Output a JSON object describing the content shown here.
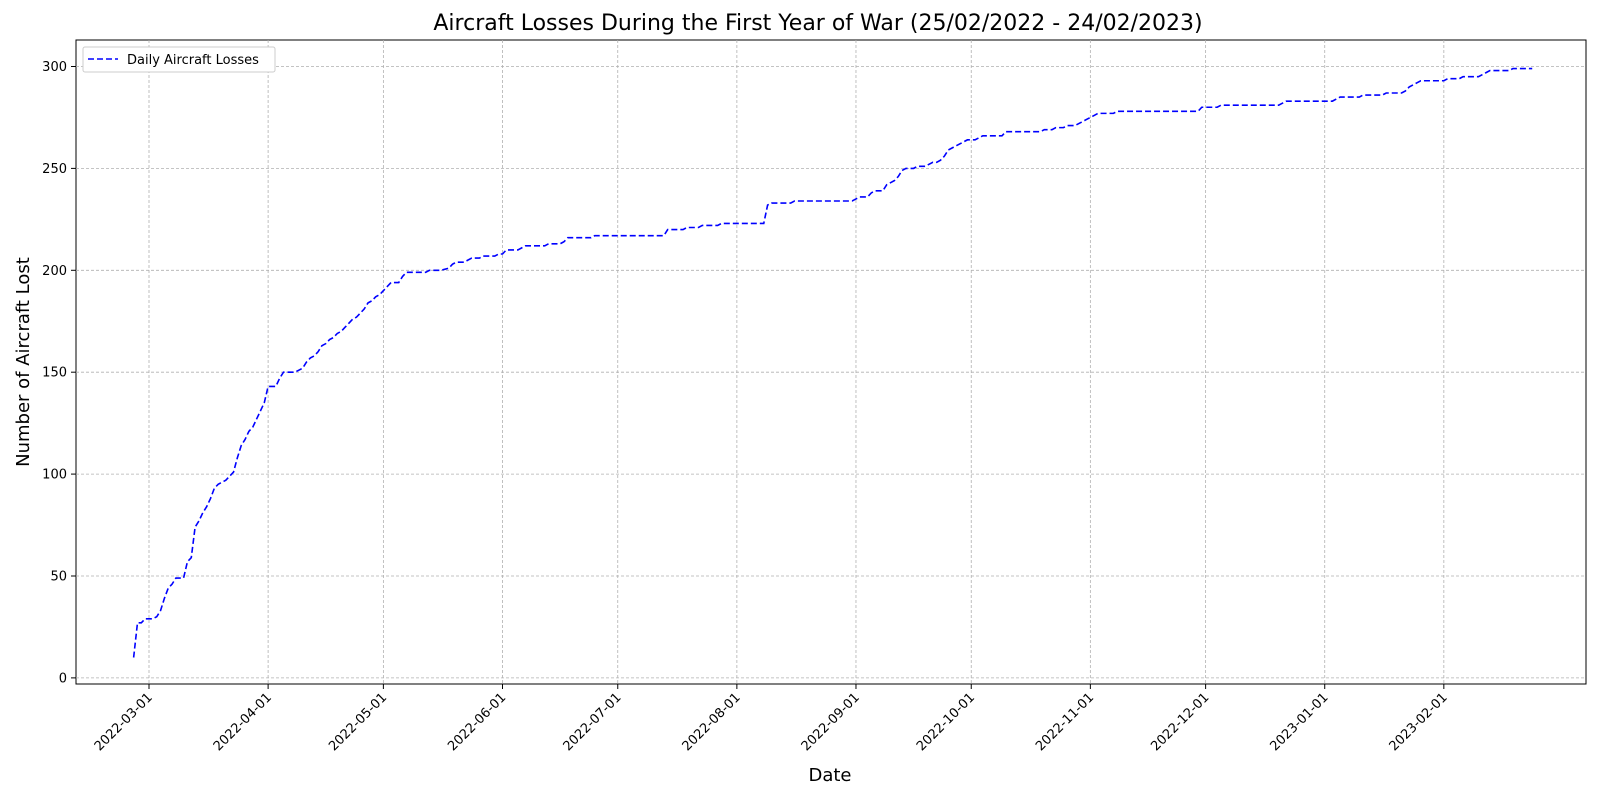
{
  "chart_data": {
    "type": "line",
    "title": "Aircraft Losses During the First Year of War (25/02/2022 - 24/02/2023)",
    "xlabel": "Date",
    "ylabel": "Number of Aircraft Lost",
    "grid": true,
    "legend_position": "top-left",
    "x_ticks": [
      "2022-03-01",
      "2022-04-01",
      "2022-05-01",
      "2022-06-01",
      "2022-07-01",
      "2022-08-01",
      "2022-09-01",
      "2022-10-01",
      "2022-11-01",
      "2022-12-01",
      "2023-01-01",
      "2023-02-01"
    ],
    "y_ticks": [
      0,
      50,
      100,
      150,
      200,
      250,
      300
    ],
    "ylim": [
      -3,
      313
    ],
    "xlim": [
      "2022-02-10",
      "2023-03-10"
    ],
    "series": [
      {
        "name": "Daily Aircraft Losses",
        "color": "#0000ff",
        "line_style": "dashed",
        "points": [
          [
            "2022-02-25",
            10
          ],
          [
            "2022-02-26",
            27
          ],
          [
            "2022-02-27",
            27
          ],
          [
            "2022-02-28",
            29
          ],
          [
            "2022-03-02",
            29
          ],
          [
            "2022-03-03",
            30
          ],
          [
            "2022-03-04",
            33
          ],
          [
            "2022-03-05",
            39
          ],
          [
            "2022-03-06",
            44
          ],
          [
            "2022-03-07",
            46
          ],
          [
            "2022-03-08",
            49
          ],
          [
            "2022-03-10",
            49
          ],
          [
            "2022-03-11",
            57
          ],
          [
            "2022-03-12",
            59
          ],
          [
            "2022-03-13",
            74
          ],
          [
            "2022-03-14",
            77
          ],
          [
            "2022-03-15",
            81
          ],
          [
            "2022-03-16",
            84
          ],
          [
            "2022-03-17",
            88
          ],
          [
            "2022-03-18",
            93
          ],
          [
            "2022-03-19",
            95
          ],
          [
            "2022-03-20",
            96
          ],
          [
            "2022-03-21",
            97
          ],
          [
            "2022-03-22",
            99
          ],
          [
            "2022-03-23",
            101
          ],
          [
            "2022-03-24",
            108
          ],
          [
            "2022-03-25",
            114
          ],
          [
            "2022-03-26",
            117
          ],
          [
            "2022-03-27",
            121
          ],
          [
            "2022-03-28",
            123
          ],
          [
            "2022-03-29",
            127
          ],
          [
            "2022-03-30",
            131
          ],
          [
            "2022-03-31",
            135
          ],
          [
            "2022-04-01",
            143
          ],
          [
            "2022-04-03",
            143
          ],
          [
            "2022-04-04",
            147
          ],
          [
            "2022-04-05",
            150
          ],
          [
            "2022-04-07",
            150
          ],
          [
            "2022-04-08",
            150
          ],
          [
            "2022-04-09",
            151
          ],
          [
            "2022-04-10",
            152
          ],
          [
            "2022-04-11",
            155
          ],
          [
            "2022-04-12",
            157
          ],
          [
            "2022-04-13",
            158
          ],
          [
            "2022-04-14",
            160
          ],
          [
            "2022-04-15",
            163
          ],
          [
            "2022-04-16",
            164
          ],
          [
            "2022-04-17",
            166
          ],
          [
            "2022-04-18",
            167
          ],
          [
            "2022-04-19",
            169
          ],
          [
            "2022-04-20",
            170
          ],
          [
            "2022-04-21",
            172
          ],
          [
            "2022-04-22",
            174
          ],
          [
            "2022-04-23",
            176
          ],
          [
            "2022-04-24",
            177
          ],
          [
            "2022-04-25",
            179
          ],
          [
            "2022-04-26",
            181
          ],
          [
            "2022-04-27",
            184
          ],
          [
            "2022-04-28",
            185
          ],
          [
            "2022-04-29",
            187
          ],
          [
            "2022-04-30",
            188
          ],
          [
            "2022-05-01",
            190
          ],
          [
            "2022-05-02",
            192
          ],
          [
            "2022-05-03",
            194
          ],
          [
            "2022-05-05",
            194
          ],
          [
            "2022-05-06",
            197
          ],
          [
            "2022-05-07",
            199
          ],
          [
            "2022-05-12",
            199
          ],
          [
            "2022-05-13",
            200
          ],
          [
            "2022-05-16",
            200
          ],
          [
            "2022-05-18",
            201
          ],
          [
            "2022-05-19",
            203
          ],
          [
            "2022-05-20",
            204
          ],
          [
            "2022-05-22",
            204
          ],
          [
            "2022-05-24",
            206
          ],
          [
            "2022-05-26",
            206
          ],
          [
            "2022-05-27",
            207
          ],
          [
            "2022-05-30",
            207
          ],
          [
            "2022-05-31",
            208
          ],
          [
            "2022-06-01",
            208
          ],
          [
            "2022-06-02",
            210
          ],
          [
            "2022-06-05",
            210
          ],
          [
            "2022-06-07",
            212
          ],
          [
            "2022-06-12",
            212
          ],
          [
            "2022-06-13",
            213
          ],
          [
            "2022-06-16",
            213
          ],
          [
            "2022-06-17",
            214
          ],
          [
            "2022-06-18",
            216
          ],
          [
            "2022-06-24",
            216
          ],
          [
            "2022-06-25",
            217
          ],
          [
            "2022-07-13",
            217
          ],
          [
            "2022-07-14",
            220
          ],
          [
            "2022-07-18",
            220
          ],
          [
            "2022-07-19",
            221
          ],
          [
            "2022-07-22",
            221
          ],
          [
            "2022-07-23",
            222
          ],
          [
            "2022-07-27",
            222
          ],
          [
            "2022-07-28",
            223
          ],
          [
            "2022-08-07",
            223
          ],
          [
            "2022-08-08",
            223
          ],
          [
            "2022-08-09",
            232
          ],
          [
            "2022-08-10",
            233
          ],
          [
            "2022-08-15",
            233
          ],
          [
            "2022-08-16",
            234
          ],
          [
            "2022-08-30",
            234
          ],
          [
            "2022-08-31",
            234
          ],
          [
            "2022-09-01",
            235
          ],
          [
            "2022-09-02",
            236
          ],
          [
            "2022-09-04",
            236
          ],
          [
            "2022-09-05",
            238
          ],
          [
            "2022-09-06",
            239
          ],
          [
            "2022-09-08",
            239
          ],
          [
            "2022-09-09",
            242
          ],
          [
            "2022-09-10",
            243
          ],
          [
            "2022-09-11",
            244
          ],
          [
            "2022-09-12",
            246
          ],
          [
            "2022-09-13",
            249
          ],
          [
            "2022-09-14",
            250
          ],
          [
            "2022-09-16",
            250
          ],
          [
            "2022-09-17",
            251
          ],
          [
            "2022-09-19",
            251
          ],
          [
            "2022-09-20",
            252
          ],
          [
            "2022-09-21",
            253
          ],
          [
            "2022-09-22",
            253
          ],
          [
            "2022-09-23",
            254
          ],
          [
            "2022-09-24",
            256
          ],
          [
            "2022-09-25",
            259
          ],
          [
            "2022-09-26",
            260
          ],
          [
            "2022-09-27",
            261
          ],
          [
            "2022-09-28",
            262
          ],
          [
            "2022-09-29",
            263
          ],
          [
            "2022-09-30",
            264
          ],
          [
            "2022-10-01",
            264
          ],
          [
            "2022-10-02",
            264
          ],
          [
            "2022-10-03",
            265
          ],
          [
            "2022-10-04",
            266
          ],
          [
            "2022-10-09",
            266
          ],
          [
            "2022-10-10",
            268
          ],
          [
            "2022-10-19",
            268
          ],
          [
            "2022-10-20",
            269
          ],
          [
            "2022-10-22",
            269
          ],
          [
            "2022-10-23",
            270
          ],
          [
            "2022-10-25",
            270
          ],
          [
            "2022-10-26",
            271
          ],
          [
            "2022-10-28",
            271
          ],
          [
            "2022-10-29",
            272
          ],
          [
            "2022-10-30",
            273
          ],
          [
            "2022-10-31",
            274
          ],
          [
            "2022-11-01",
            275
          ],
          [
            "2022-11-02",
            276
          ],
          [
            "2022-11-03",
            277
          ],
          [
            "2022-11-07",
            277
          ],
          [
            "2022-11-08",
            278
          ],
          [
            "2022-11-29",
            278
          ],
          [
            "2022-11-30",
            280
          ],
          [
            "2022-12-04",
            280
          ],
          [
            "2022-12-05",
            281
          ],
          [
            "2022-12-20",
            281
          ],
          [
            "2022-12-21",
            282
          ],
          [
            "2022-12-22",
            283
          ],
          [
            "2023-01-01",
            283
          ],
          [
            "2023-01-03",
            283
          ],
          [
            "2023-01-04",
            284
          ],
          [
            "2023-01-05",
            285
          ],
          [
            "2023-01-10",
            285
          ],
          [
            "2023-01-11",
            286
          ],
          [
            "2023-01-16",
            286
          ],
          [
            "2023-01-17",
            287
          ],
          [
            "2023-01-21",
            287
          ],
          [
            "2023-01-22",
            288
          ],
          [
            "2023-01-23",
            290
          ],
          [
            "2023-01-24",
            291
          ],
          [
            "2023-01-25",
            292
          ],
          [
            "2023-01-26",
            293
          ],
          [
            "2023-01-31",
            293
          ],
          [
            "2023-02-01",
            293
          ],
          [
            "2023-02-02",
            294
          ],
          [
            "2023-02-05",
            294
          ],
          [
            "2023-02-06",
            295
          ],
          [
            "2023-02-10",
            295
          ],
          [
            "2023-02-11",
            296
          ],
          [
            "2023-02-12",
            297
          ],
          [
            "2023-02-13",
            298
          ],
          [
            "2023-02-18",
            298
          ],
          [
            "2023-02-19",
            299
          ],
          [
            "2023-02-24",
            299
          ]
        ]
      }
    ]
  }
}
